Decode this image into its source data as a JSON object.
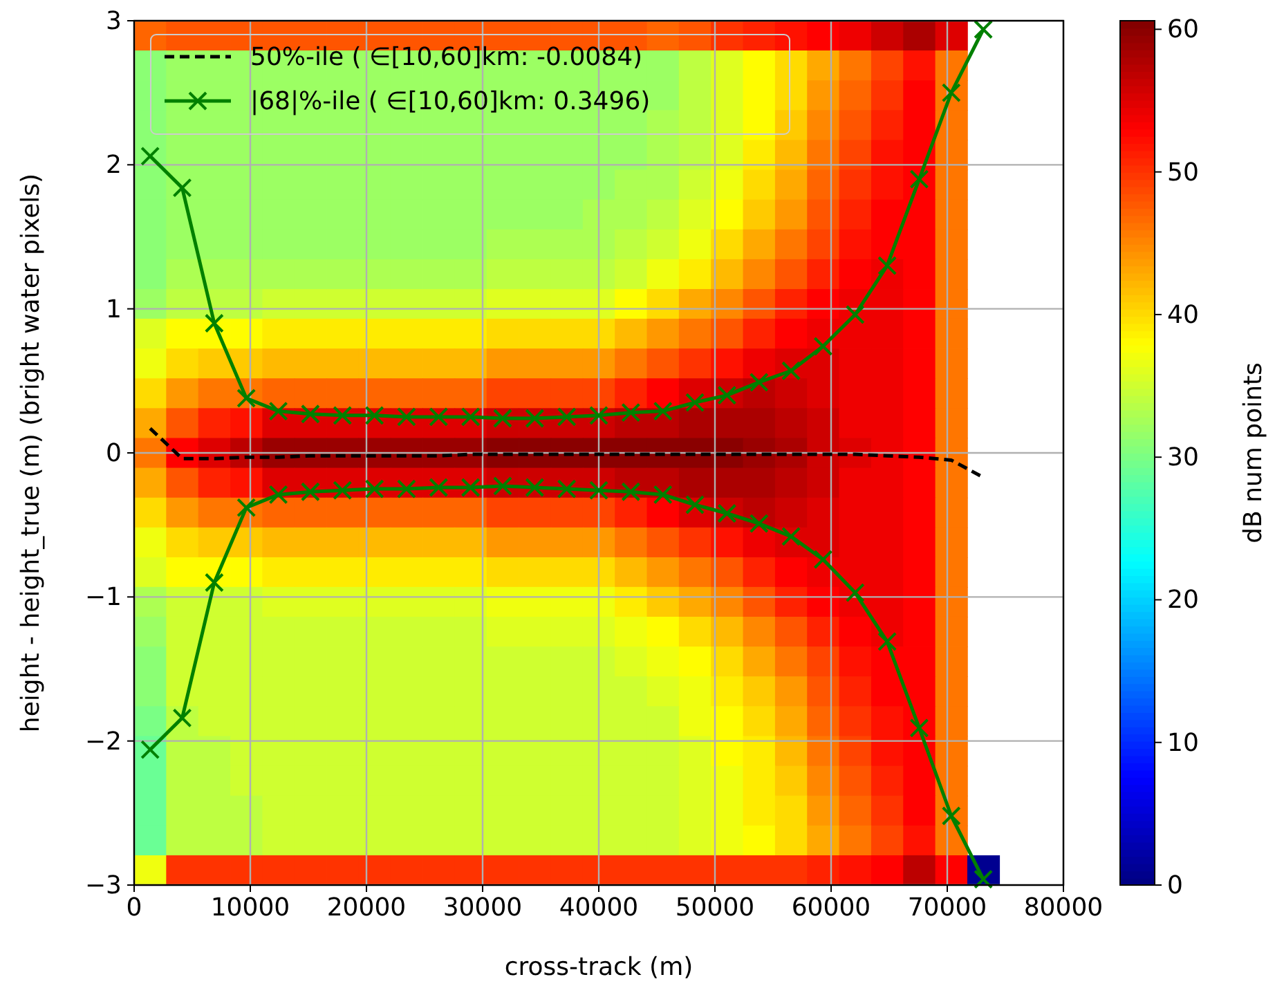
{
  "chart_data": {
    "type": "heatmap",
    "xlabel": "cross-track (m)",
    "ylabel": "height - height_true (m) (bright water pixels)",
    "clabel": "dB num points",
    "xlim": [
      0,
      80000
    ],
    "ylim": [
      -3,
      3
    ],
    "xticks": [
      0,
      10000,
      20000,
      30000,
      40000,
      50000,
      60000,
      70000,
      80000
    ],
    "yticks": [
      {
        "value": -3,
        "label": "−3"
      },
      {
        "value": -2,
        "label": "−2"
      },
      {
        "value": -1,
        "label": "−1"
      },
      0,
      1,
      2,
      3
    ],
    "clim": [
      0,
      60.6
    ],
    "cticks": [
      0,
      10,
      20,
      30,
      40,
      50,
      60
    ],
    "grid": true,
    "legend": "top left",
    "x": [
      1379,
      4138,
      6897,
      9655,
      12414,
      15172,
      17931,
      20690,
      23448,
      26207,
      28966,
      31724,
      34483,
      37241,
      40000,
      42759,
      45517,
      48276,
      51034,
      53793,
      56552,
      59310,
      62069,
      64828,
      67586,
      70345,
      73103
    ],
    "y": [
      2.897,
      2.69,
      2.483,
      2.276,
      2.069,
      1.862,
      1.655,
      1.448,
      1.241,
      1.034,
      0.828,
      0.621,
      0.414,
      0.207,
      0,
      -0.207,
      -0.414,
      -0.621,
      -0.828,
      -1.034,
      -1.241,
      -1.448,
      -1.655,
      -1.862,
      -2.069,
      -2.276,
      -2.483,
      -2.69,
      -2.897
    ],
    "cells": [
      [
        47,
        48,
        48,
        48,
        48,
        48,
        48,
        48,
        48,
        48,
        48,
        48,
        48,
        48,
        48,
        48,
        47,
        48,
        50,
        51,
        52,
        53,
        54,
        56,
        58,
        55,
        null
      ],
      [
        31,
        32,
        32,
        32,
        32,
        32,
        32,
        32,
        32,
        32,
        32,
        32,
        32,
        32,
        32,
        32,
        32,
        34,
        36,
        38,
        40,
        43,
        46,
        49,
        52,
        46,
        null
      ],
      [
        31,
        32,
        32,
        32,
        32,
        32,
        32,
        32,
        32,
        32,
        32,
        32,
        32,
        32,
        32,
        32,
        32,
        34,
        36,
        38,
        40,
        44,
        47,
        50,
        53,
        46,
        null
      ],
      [
        31,
        32,
        32,
        32,
        32,
        32,
        32,
        32,
        32,
        32,
        32,
        32,
        32,
        32,
        32,
        32,
        33,
        34,
        36,
        38,
        41,
        45,
        48,
        51,
        53,
        46,
        null
      ],
      [
        31,
        32,
        32,
        32,
        32,
        32,
        32,
        32,
        32,
        32,
        32,
        32,
        32,
        32,
        32,
        32,
        33,
        34,
        36,
        39,
        42,
        46,
        49,
        52,
        53,
        46,
        null
      ],
      [
        31,
        32,
        32,
        32,
        32,
        32,
        32,
        32,
        32,
        32,
        32,
        32,
        32,
        32,
        32,
        33,
        33,
        35,
        37,
        40,
        43,
        47,
        50,
        52,
        53,
        46,
        null
      ],
      [
        31,
        32,
        32,
        32,
        32,
        32,
        32,
        32,
        32,
        32,
        32,
        32,
        32,
        32,
        33,
        33,
        34,
        36,
        38,
        41,
        44,
        48,
        51,
        53,
        53,
        46,
        null
      ],
      [
        31,
        32,
        32,
        32,
        32,
        32,
        32,
        32,
        32,
        32,
        32,
        33,
        33,
        33,
        33,
        34,
        35,
        37,
        40,
        43,
        46,
        49,
        52,
        53,
        53,
        46,
        null
      ],
      [
        31,
        33,
        33,
        33,
        33,
        33,
        33,
        33,
        33,
        33,
        33,
        34,
        34,
        34,
        34,
        35,
        37,
        39,
        42,
        45,
        48,
        51,
        53,
        54,
        53,
        46,
        null
      ],
      [
        32,
        34,
        34,
        34,
        35,
        35,
        35,
        35,
        35,
        35,
        35,
        36,
        36,
        36,
        36,
        38,
        40,
        43,
        45,
        48,
        51,
        53,
        54,
        54,
        53,
        46,
        null
      ],
      [
        36,
        38,
        38,
        38,
        39,
        39,
        39,
        39,
        39,
        39,
        39,
        40,
        40,
        40,
        40,
        42,
        44,
        46,
        48,
        51,
        53,
        54,
        54,
        54,
        53,
        46,
        null
      ],
      [
        37,
        40,
        41,
        41,
        42,
        42,
        42,
        42,
        42,
        42,
        42,
        44,
        44,
        44,
        44,
        46,
        48,
        50,
        52,
        54,
        55,
        55,
        54,
        54,
        53,
        46,
        null
      ],
      [
        40,
        44,
        46,
        46,
        47,
        47,
        47,
        47,
        47,
        47,
        47,
        49,
        49,
        49,
        49,
        51,
        53,
        55,
        56,
        57,
        56,
        55,
        54,
        54,
        53,
        46,
        null
      ],
      [
        43,
        48,
        51,
        52,
        55,
        55,
        55,
        55,
        55,
        55,
        55,
        56,
        56,
        56,
        56,
        57,
        57,
        58,
        58,
        58,
        57,
        56,
        54,
        54,
        53,
        46,
        null
      ],
      [
        46,
        53,
        55,
        57,
        59,
        59,
        59,
        59,
        59,
        59,
        59,
        60,
        60,
        60,
        60,
        60,
        60,
        60,
        60,
        59,
        58,
        56,
        55,
        54,
        53,
        46,
        null
      ],
      [
        43,
        48,
        51,
        52,
        55,
        55,
        55,
        55,
        55,
        55,
        55,
        56,
        56,
        56,
        56,
        57,
        57,
        58,
        58,
        58,
        57,
        56,
        54,
        54,
        53,
        46,
        null
      ],
      [
        40,
        44,
        46,
        46,
        47,
        47,
        47,
        47,
        47,
        47,
        47,
        49,
        49,
        49,
        49,
        51,
        53,
        55,
        56,
        57,
        56,
        55,
        54,
        54,
        53,
        46,
        null
      ],
      [
        37,
        40,
        41,
        41,
        42,
        42,
        42,
        42,
        42,
        42,
        42,
        44,
        44,
        44,
        44,
        46,
        48,
        50,
        52,
        54,
        55,
        55,
        54,
        54,
        53,
        46,
        null
      ],
      [
        36,
        38,
        38,
        38,
        39,
        39,
        39,
        39,
        39,
        39,
        39,
        40,
        40,
        40,
        40,
        42,
        44,
        46,
        48,
        51,
        53,
        54,
        54,
        54,
        53,
        46,
        null
      ],
      [
        33,
        35,
        35,
        35,
        36,
        36,
        36,
        36,
        36,
        36,
        36,
        37,
        37,
        37,
        37,
        39,
        41,
        43,
        45,
        48,
        51,
        53,
        54,
        54,
        53,
        46,
        null
      ],
      [
        32,
        35,
        35,
        35,
        35,
        35,
        35,
        35,
        35,
        35,
        35,
        36,
        36,
        36,
        36,
        37,
        38,
        40,
        42,
        45,
        48,
        51,
        53,
        54,
        53,
        46,
        null
      ],
      [
        31,
        35,
        35,
        35,
        35,
        35,
        35,
        35,
        35,
        35,
        35,
        35,
        35,
        35,
        35,
        36,
        37,
        38,
        40,
        43,
        46,
        49,
        52,
        53,
        53,
        46,
        null
      ],
      [
        31,
        35,
        35,
        35,
        35,
        35,
        35,
        35,
        35,
        35,
        35,
        35,
        35,
        35,
        35,
        35,
        36,
        37,
        39,
        41,
        44,
        48,
        51,
        53,
        53,
        46,
        null
      ],
      [
        30,
        34,
        35,
        35,
        35,
        35,
        35,
        35,
        35,
        35,
        35,
        35,
        35,
        35,
        35,
        35,
        35,
        37,
        38,
        40,
        43,
        47,
        50,
        52,
        53,
        46,
        null
      ],
      [
        29,
        34,
        34,
        35,
        35,
        35,
        35,
        35,
        35,
        35,
        35,
        35,
        35,
        35,
        35,
        35,
        35,
        36,
        38,
        39,
        42,
        46,
        49,
        52,
        53,
        46,
        null
      ],
      [
        29,
        34,
        34,
        35,
        35,
        35,
        35,
        35,
        35,
        35,
        35,
        35,
        35,
        35,
        35,
        35,
        35,
        36,
        37,
        39,
        41,
        45,
        48,
        51,
        53,
        46,
        null
      ],
      [
        29,
        34,
        34,
        34,
        35,
        35,
        35,
        35,
        35,
        35,
        35,
        35,
        35,
        35,
        35,
        35,
        35,
        36,
        37,
        39,
        40,
        44,
        47,
        50,
        53,
        46,
        null
      ],
      [
        29,
        34,
        34,
        34,
        35,
        35,
        35,
        35,
        35,
        35,
        35,
        35,
        35,
        35,
        35,
        35,
        35,
        36,
        37,
        38,
        40,
        43,
        46,
        49,
        52,
        46,
        null
      ],
      [
        37,
        50,
        50,
        50,
        50,
        50,
        50,
        50,
        50,
        50,
        50,
        50,
        50,
        50,
        50,
        50,
        50,
        50,
        50,
        50,
        50,
        51,
        52,
        53,
        57,
        53,
        1
      ]
    ],
    "series": [
      {
        "type": "line",
        "name": "50%-ile ( ∈[10,60]km: -0.0084)",
        "color": "#000000",
        "line_style": "dashed",
        "marker": "none",
        "values": [
          0.17,
          -0.04,
          -0.04,
          -0.03,
          -0.03,
          -0.02,
          -0.02,
          -0.02,
          -0.02,
          -0.02,
          -0.01,
          -0.01,
          -0.01,
          -0.01,
          -0.01,
          -0.01,
          -0.01,
          -0.01,
          -0.01,
          -0.01,
          -0.01,
          -0.01,
          -0.01,
          -0.02,
          -0.03,
          -0.05,
          -0.17
        ]
      },
      {
        "type": "line",
        "name": "|68|%-ile ( ∈[10,60]km: 0.3496)",
        "color": "#008000",
        "line_style": "solid",
        "marker": "cross",
        "values": [
          2.06,
          1.84,
          0.9,
          0.38,
          0.29,
          0.27,
          0.26,
          0.26,
          0.25,
          0.25,
          0.25,
          0.24,
          0.24,
          0.25,
          0.26,
          0.28,
          0.29,
          0.35,
          0.4,
          0.49,
          0.57,
          0.74,
          0.96,
          1.3,
          1.9,
          2.5,
          2.94
        ]
      },
      {
        "type": "line",
        "color": "#008000",
        "line_style": "solid",
        "marker": "cross",
        "values": [
          -2.06,
          -1.84,
          -0.9,
          -0.38,
          -0.29,
          -0.27,
          -0.26,
          -0.25,
          -0.25,
          -0.24,
          -0.24,
          -0.23,
          -0.24,
          -0.25,
          -0.26,
          -0.27,
          -0.29,
          -0.36,
          -0.42,
          -0.49,
          -0.58,
          -0.74,
          -0.97,
          -1.31,
          -1.91,
          -2.52,
          -2.96
        ]
      }
    ]
  }
}
